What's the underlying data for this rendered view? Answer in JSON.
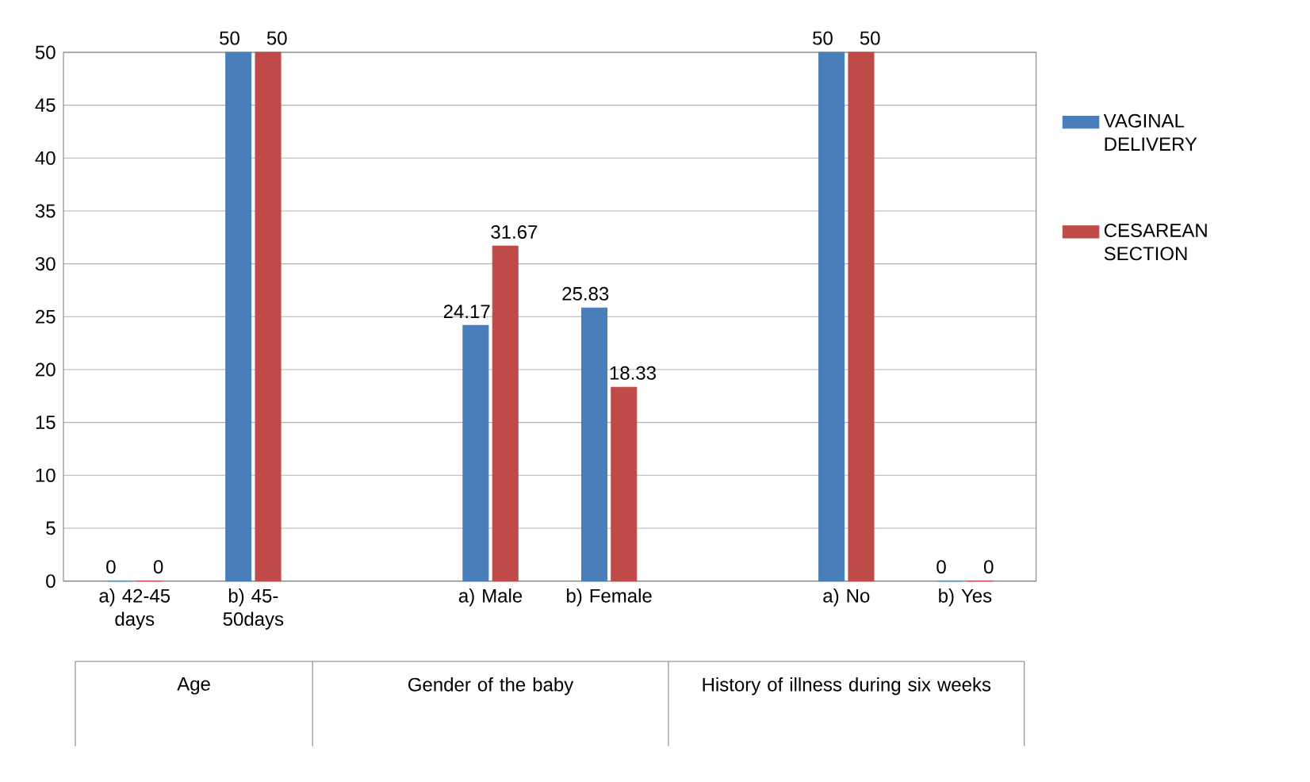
{
  "chart_data": {
    "type": "bar",
    "categories": [
      "a) 42-45 days",
      "b) 45-50days",
      null,
      "a) Male",
      "b) Female",
      null,
      "a) No",
      "b) Yes"
    ],
    "series": [
      {
        "name": "VAGINAL DELIVERY",
        "color": "#4a7ebb",
        "values": [
          0,
          50,
          null,
          24.17,
          25.83,
          null,
          50,
          0
        ]
      },
      {
        "name": "CESAREAN SECTION",
        "color": "#be4b48",
        "values": [
          0,
          50,
          null,
          31.67,
          18.33,
          null,
          50,
          0
        ]
      }
    ],
    "ylim": [
      0,
      50
    ],
    "yticks": [
      0,
      5,
      10,
      15,
      20,
      25,
      30,
      35,
      40,
      45,
      50
    ],
    "grid": "y",
    "legend": "right",
    "data_labels": true,
    "annotations": [
      "Age",
      "Gender of the baby",
      "History of illness during six weeks"
    ]
  }
}
